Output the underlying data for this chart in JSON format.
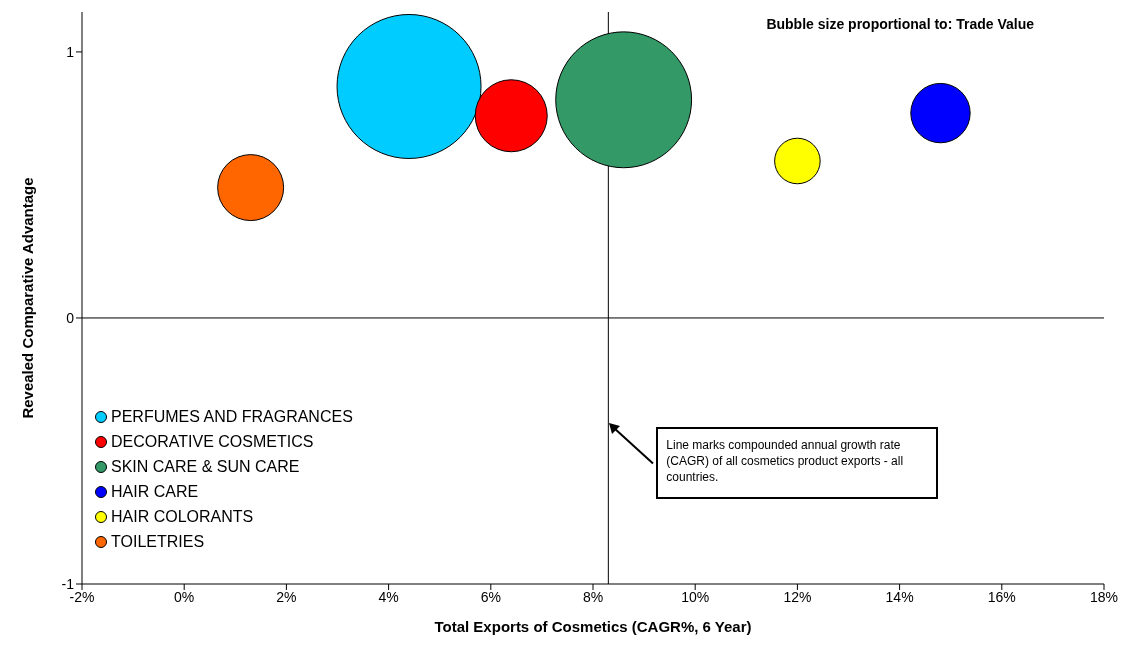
{
  "chart_data": {
    "type": "bubble",
    "xlabel": "Total Exports of Cosmetics (CAGR%, 6 Year)",
    "ylabel": "Revealed Comparative Advantage",
    "annotations": [
      "Bubble size proportional to: Trade Value"
    ],
    "series": [
      {
        "name": "PERFUMES AND FRAGRANCES",
        "color": "#00ccff",
        "x": [
          4.4
        ],
        "values": [
          0.87
        ],
        "sizes": [
          1
        ]
      },
      {
        "name": "DECORATIVE COSMETICS",
        "color": "#ff0000",
        "x": [
          6.4
        ],
        "values": [
          0.76
        ],
        "sizes": [
          0.25
        ]
      },
      {
        "name": "SKIN CARE & SUN CARE",
        "color": "#339966",
        "x": [
          8.6
        ],
        "values": [
          0.82
        ],
        "sizes": [
          0.89
        ]
      },
      {
        "name": "HAIR CARE",
        "color": "#0000ff",
        "x": [
          14.8
        ],
        "values": [
          0.77
        ],
        "sizes": [
          0.17
        ]
      },
      {
        "name": "HAIR COLORANTS",
        "color": "#ffff00",
        "x": [
          12.0
        ],
        "values": [
          0.59
        ],
        "sizes": [
          0.1
        ]
      },
      {
        "name": "TOILETRIES",
        "color": "#ff6600",
        "x": [
          1.3
        ],
        "values": [
          0.49
        ],
        "sizes": [
          0.21
        ]
      }
    ],
    "xlim": [
      -2,
      18
    ],
    "xticks": [
      {
        "value": -2,
        "label": "-2%"
      },
      {
        "value": 0,
        "label": "0%"
      },
      {
        "value": 2,
        "label": "2%"
      },
      {
        "value": 4,
        "label": "4%"
      },
      {
        "value": 6,
        "label": "6%"
      },
      {
        "value": 8,
        "label": "8%"
      },
      {
        "value": 10,
        "label": "10%"
      },
      {
        "value": 12,
        "label": "12%"
      },
      {
        "value": 14,
        "label": "14%"
      },
      {
        "value": 16,
        "label": "16%"
      },
      {
        "value": 18,
        "label": "18%"
      }
    ],
    "ylim": [
      -1,
      1.15
    ],
    "yticks": [
      -1,
      0,
      1
    ],
    "ref_lines": [
      {
        "axis": "x",
        "value": 8.3,
        "label": "Line marks compounded annual growth rate (CAGR) of all cosmetics product exports - all countries.",
        "color": "#000000"
      },
      {
        "axis": "y",
        "value": 0,
        "color": "#000000"
      }
    ],
    "grid": false,
    "legend": "bottom left",
    "marker": "circle"
  }
}
